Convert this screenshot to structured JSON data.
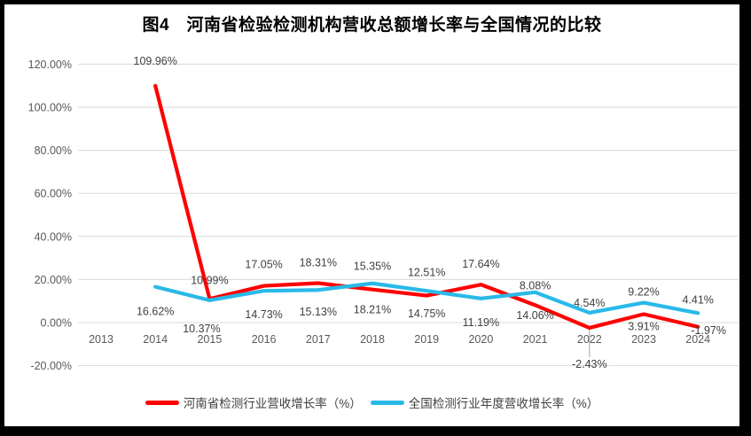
{
  "chart_data": {
    "type": "line",
    "title": "图4　河南省检验检测机构营收总额增长率与全国情况的比较",
    "categories": [
      "2013",
      "2014",
      "2015",
      "2016",
      "2017",
      "2018",
      "2019",
      "2020",
      "2021",
      "2022",
      "2023",
      "2024"
    ],
    "series": [
      {
        "name": "河南省检测行业营收增长率（%）",
        "color": "#FF0000",
        "values": [
          null,
          109.96,
          10.99,
          17.05,
          18.31,
          15.35,
          12.51,
          17.64,
          8.08,
          -2.43,
          3.91,
          -1.97
        ],
        "labels": [
          "",
          "109.96%",
          "10.99%",
          "17.05%",
          "18.31%",
          "15.35%",
          "12.51%",
          "17.64%",
          "8.08%",
          "-2.43%",
          "3.91%",
          "-1.97%"
        ]
      },
      {
        "name": "全国检测行业年度营收增长率（%）",
        "color": "#29B9E8",
        "values": [
          null,
          16.62,
          10.37,
          14.73,
          15.13,
          18.21,
          14.75,
          11.19,
          14.06,
          4.54,
          9.22,
          4.41
        ],
        "labels": [
          "",
          "16.62%",
          "10.37%",
          "14.73%",
          "15.13%",
          "18.21%",
          "14.75%",
          "11.19%",
          "14.06%",
          "4.54%",
          "9.22%",
          "4.41%"
        ]
      }
    ],
    "y_axis": {
      "tick_labels": [
        "120.00%",
        "100.00%",
        "80.00%",
        "60.00%",
        "40.00%",
        "20.00%",
        "0.00%",
        "-20.00%"
      ],
      "tick_values": [
        120,
        100,
        80,
        60,
        40,
        20,
        0,
        -20
      ],
      "min": -20,
      "max": 120,
      "step": 20
    },
    "grid": true,
    "legend_position": "bottom",
    "colors": {
      "grid_line": "#D9D9D9",
      "axis_text": "#595959",
      "data_label_text": "#404040",
      "leader_line": "#A6A6A6",
      "title_text": "#000000",
      "background": "#FFFFFF",
      "frame_border": "#000000"
    }
  }
}
